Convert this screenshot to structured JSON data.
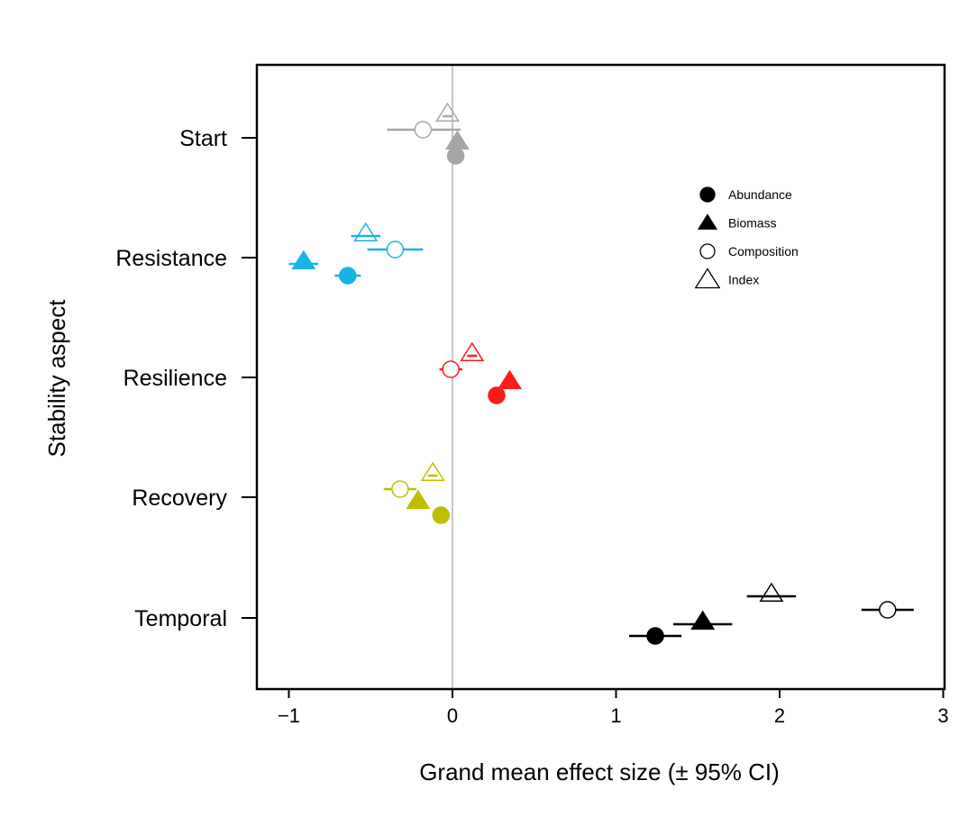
{
  "chart_data": {
    "type": "scatter",
    "xlabel": "Grand mean effect size (± 95% CI)",
    "ylabel": "Stability aspect",
    "xlim": [
      -1.2,
      3.0
    ],
    "x_ticks": [
      -1,
      0,
      1,
      2,
      3
    ],
    "x_tick_labels": [
      "−1",
      "0",
      "1",
      "2",
      "3"
    ],
    "reference_line_x": 0,
    "reference_line_color": "#b3b3b3",
    "categories": [
      "Start",
      "Resistance",
      "Resilience",
      "Recovery",
      "Temporal"
    ],
    "category_colors": {
      "Start": "#a6a6a6",
      "Resistance": "#1ab2e6",
      "Resilience": "#ff1a1a",
      "Recovery": "#bfbf00",
      "Temporal": "#000000"
    },
    "legend": {
      "position": "top-right",
      "entries": [
        {
          "label": "Abundance",
          "marker": "circle",
          "filled": true
        },
        {
          "label": "Biomass",
          "marker": "triangle",
          "filled": true
        },
        {
          "label": "Composition",
          "marker": "circle",
          "filled": false
        },
        {
          "label": "Index",
          "marker": "triangle",
          "filled": false
        }
      ]
    },
    "series": [
      {
        "name": "Index",
        "marker": "triangle",
        "filled": false,
        "points": [
          {
            "category": "Start",
            "x": -0.03,
            "ci": [
              -0.06,
              0.0
            ]
          },
          {
            "category": "Resistance",
            "x": -0.53,
            "ci": [
              -0.62,
              -0.44
            ]
          },
          {
            "category": "Resilience",
            "x": 0.12,
            "ci": [
              0.09,
              0.15
            ]
          },
          {
            "category": "Recovery",
            "x": -0.12,
            "ci": [
              -0.15,
              -0.09
            ]
          },
          {
            "category": "Temporal",
            "x": 1.95,
            "ci": [
              1.8,
              2.1
            ]
          }
        ]
      },
      {
        "name": "Composition",
        "marker": "circle",
        "filled": false,
        "points": [
          {
            "category": "Start",
            "x": -0.18,
            "ci": [
              -0.4,
              0.05
            ]
          },
          {
            "category": "Resistance",
            "x": -0.35,
            "ci": [
              -0.52,
              -0.18
            ]
          },
          {
            "category": "Resilience",
            "x": -0.01,
            "ci": [
              -0.08,
              0.06
            ]
          },
          {
            "category": "Recovery",
            "x": -0.32,
            "ci": [
              -0.42,
              -0.22
            ]
          },
          {
            "category": "Temporal",
            "x": 2.66,
            "ci": [
              2.5,
              2.82
            ]
          }
        ]
      },
      {
        "name": "Biomass",
        "marker": "triangle",
        "filled": true,
        "points": [
          {
            "category": "Start",
            "x": 0.03,
            "ci": [
              0.01,
              0.05
            ]
          },
          {
            "category": "Resistance",
            "x": -0.91,
            "ci": [
              -1.0,
              -0.82
            ]
          },
          {
            "category": "Resilience",
            "x": 0.35,
            "ci": [
              0.32,
              0.38
            ]
          },
          {
            "category": "Recovery",
            "x": -0.21,
            "ci": [
              -0.25,
              -0.17
            ]
          },
          {
            "category": "Temporal",
            "x": 1.53,
            "ci": [
              1.35,
              1.71
            ]
          }
        ]
      },
      {
        "name": "Abundance",
        "marker": "circle",
        "filled": true,
        "points": [
          {
            "category": "Start",
            "x": 0.02,
            "ci": [
              0.0,
              0.04
            ]
          },
          {
            "category": "Resistance",
            "x": -0.64,
            "ci": [
              -0.72,
              -0.56
            ]
          },
          {
            "category": "Resilience",
            "x": 0.27,
            "ci": [
              0.24,
              0.3
            ]
          },
          {
            "category": "Recovery",
            "x": -0.07,
            "ci": [
              -0.1,
              -0.04
            ]
          },
          {
            "category": "Temporal",
            "x": 1.24,
            "ci": [
              1.08,
              1.4
            ]
          }
        ]
      }
    ]
  }
}
